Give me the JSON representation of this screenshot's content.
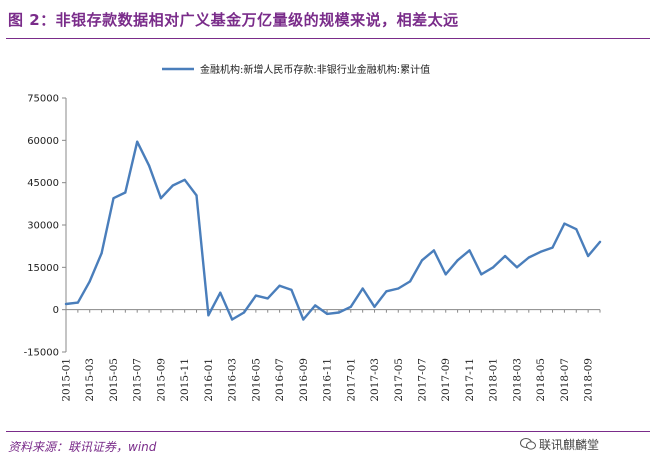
{
  "title": "图 2：非银存款数据相对广义基金万亿量级的规模来说，相差太远",
  "source": "资料来源：联讯证券，wind",
  "watermark": "联讯麒麟堂",
  "colors": {
    "accent": "#7a2c8a",
    "line": "#4a7ebb",
    "axis": "#888888"
  },
  "chart_data": {
    "type": "line",
    "title": "",
    "xlabel": "",
    "ylabel": "",
    "ylim": [
      -15000,
      75000
    ],
    "yticks": [
      -15000,
      0,
      15000,
      30000,
      45000,
      60000,
      75000
    ],
    "ytick_labels": [
      "-15000",
      "0",
      "15000",
      "30000",
      "45000",
      "60000",
      "75000"
    ],
    "grid": false,
    "legend_position": "top-center",
    "x": [
      "2015-01",
      "2015-02",
      "2015-03",
      "2015-04",
      "2015-05",
      "2015-06",
      "2015-07",
      "2015-08",
      "2015-09",
      "2015-10",
      "2015-11",
      "2015-12",
      "2016-01",
      "2016-02",
      "2016-03",
      "2016-04",
      "2016-05",
      "2016-06",
      "2016-07",
      "2016-08",
      "2016-09",
      "2016-10",
      "2016-11",
      "2016-12",
      "2017-01",
      "2017-02",
      "2017-03",
      "2017-04",
      "2017-05",
      "2017-06",
      "2017-07",
      "2017-08",
      "2017-09",
      "2017-10",
      "2017-11",
      "2017-12",
      "2018-01",
      "2018-02",
      "2018-03",
      "2018-04",
      "2018-05",
      "2018-06",
      "2018-07",
      "2018-08",
      "2018-09",
      "2018-10"
    ],
    "xtick_labels": [
      "2015-01",
      "2015-03",
      "2015-05",
      "2015-07",
      "2015-09",
      "2015-11",
      "2016-01",
      "2016-03",
      "2016-05",
      "2016-07",
      "2016-09",
      "2016-11",
      "2017-01",
      "2017-03",
      "2017-05",
      "2017-07",
      "2017-09",
      "2017-11",
      "2018-01",
      "2018-03",
      "2018-05",
      "2018-07",
      "2018-09"
    ],
    "series": [
      {
        "name": "金融机构:新增人民币存款:非银行业金融机构:累计值",
        "values": [
          2000,
          2500,
          10000,
          20000,
          39500,
          41500,
          59500,
          51000,
          39500,
          44000,
          46000,
          40500,
          -2000,
          6000,
          -3500,
          -1000,
          5000,
          4000,
          8500,
          7000,
          -3500,
          1500,
          -1500,
          -1000,
          1000,
          7500,
          1000,
          6500,
          7500,
          10000,
          17500,
          21000,
          12500,
          17500,
          21000,
          12500,
          15000,
          19000,
          15000,
          18500,
          20500,
          22000,
          30500,
          28500,
          19000,
          24000
        ]
      }
    ]
  }
}
